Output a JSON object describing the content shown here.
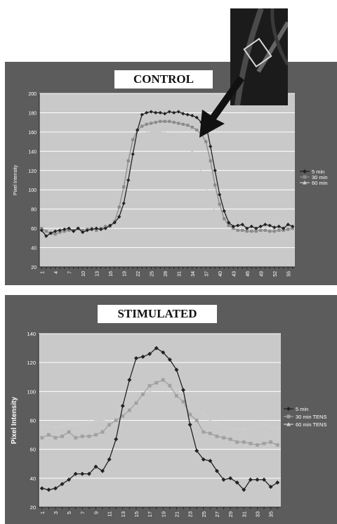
{
  "chart_data": [
    {
      "type": "line",
      "title": "CONTROL",
      "xlabel": "",
      "ylabel": "Pixel Intensity",
      "ylim": [
        20,
        200
      ],
      "yticks": [
        20,
        40,
        60,
        80,
        100,
        120,
        140,
        160,
        180,
        200
      ],
      "x": [
        1,
        2,
        3,
        4,
        5,
        6,
        7,
        8,
        9,
        10,
        11,
        12,
        13,
        14,
        15,
        16,
        17,
        18,
        19,
        20,
        21,
        22,
        23,
        24,
        25,
        26,
        27,
        28,
        29,
        30,
        31,
        32,
        33,
        34,
        35,
        36,
        37,
        38,
        39,
        40,
        41,
        42,
        43,
        44,
        45,
        46,
        47,
        48,
        49,
        50,
        51,
        52,
        53,
        54,
        55,
        56
      ],
      "xticks": [
        1,
        4,
        7,
        10,
        13,
        16,
        19,
        22,
        25,
        28,
        31,
        34,
        37,
        40,
        43,
        46,
        49,
        52,
        55
      ],
      "legend_position": "right",
      "series": [
        {
          "name": "5 min",
          "color": "#222222",
          "marker": "diamond",
          "values": [
            58,
            52,
            55,
            57,
            58,
            59,
            60,
            57,
            60,
            56,
            58,
            59,
            60,
            59,
            60,
            63,
            66,
            72,
            86,
            110,
            137,
            162,
            178,
            180,
            181,
            180,
            180,
            179,
            181,
            180,
            181,
            179,
            178,
            177,
            175,
            170,
            168,
            145,
            120,
            95,
            78,
            66,
            62,
            63,
            64,
            60,
            62,
            60,
            62,
            64,
            63,
            61,
            62,
            60,
            64,
            62
          ]
        },
        {
          "name": "30 min",
          "color": "#8a8a8a",
          "marker": "square",
          "values": [
            60,
            57,
            55,
            54,
            56,
            57,
            58,
            58,
            60,
            58,
            59,
            60,
            58,
            60,
            62,
            62,
            67,
            82,
            103,
            130,
            152,
            162,
            166,
            168,
            169,
            170,
            171,
            171,
            171,
            170,
            169,
            168,
            167,
            165,
            162,
            158,
            150,
            130,
            105,
            85,
            70,
            63,
            60,
            58,
            58,
            57,
            57,
            57,
            58,
            58,
            57,
            57,
            58,
            58,
            59,
            60
          ]
        },
        {
          "name": "60 min",
          "color": "#c8c8c8",
          "marker": "triangle",
          "values": [
            64,
            65,
            66,
            68,
            68,
            69,
            70,
            70,
            70,
            70,
            68,
            66,
            64,
            62,
            61,
            62,
            64,
            75,
            95,
            120,
            140,
            152,
            157,
            159,
            160,
            160,
            160,
            159,
            158,
            157,
            155,
            152,
            147,
            140,
            130,
            118,
            102,
            88,
            78,
            72,
            68,
            66,
            66,
            67,
            68,
            69,
            68,
            66,
            65,
            63,
            62,
            61,
            60,
            60,
            61,
            60
          ]
        }
      ]
    },
    {
      "type": "line",
      "title": "STIMULATED",
      "xlabel": "",
      "ylabel": "Pixel Intensity",
      "ylim": [
        20,
        140
      ],
      "yticks": [
        20,
        40,
        60,
        80,
        100,
        120,
        140
      ],
      "x": [
        1,
        2,
        3,
        4,
        5,
        6,
        7,
        8,
        9,
        10,
        11,
        12,
        13,
        14,
        15,
        16,
        17,
        18,
        19,
        20,
        21,
        22,
        23,
        24,
        25,
        26,
        27,
        28,
        29,
        30,
        31,
        32,
        33,
        34,
        35,
        36
      ],
      "xticks": [
        1,
        3,
        5,
        7,
        9,
        11,
        13,
        15,
        17,
        19,
        21,
        23,
        25,
        27,
        29,
        31,
        33,
        35
      ],
      "legend_position": "right",
      "series": [
        {
          "name": "5 min",
          "color": "#222222",
          "marker": "diamond",
          "values": [
            33,
            32,
            33,
            36,
            39,
            43,
            43,
            43,
            48,
            45,
            53,
            67,
            90,
            108,
            123,
            124,
            126,
            130,
            127,
            122,
            115,
            101,
            77,
            59,
            53,
            52,
            45,
            39,
            40,
            37,
            32,
            39,
            39,
            39,
            34,
            37
          ]
        },
        {
          "name": "30 min TENS",
          "color": "#a0a0a0",
          "marker": "square",
          "values": [
            68,
            70,
            68,
            69,
            72,
            68,
            69,
            69,
            70,
            72,
            77,
            80,
            83,
            87,
            92,
            98,
            104,
            106,
            108,
            104,
            97,
            93,
            84,
            80,
            72,
            71,
            69,
            68,
            67,
            65,
            65,
            64,
            63,
            64,
            65,
            63
          ]
        },
        {
          "name": "60 min TENS",
          "color": "#cccccc",
          "marker": "triangle",
          "values": [
            77,
            76,
            75,
            76,
            77,
            77,
            78,
            79,
            80,
            80,
            79,
            78,
            83,
            86,
            91,
            96,
            100,
            102,
            103,
            102,
            101,
            97,
            92,
            88,
            85,
            80,
            78,
            76,
            75,
            74,
            74,
            75,
            76,
            77,
            76,
            75
          ]
        }
      ]
    }
  ]
}
